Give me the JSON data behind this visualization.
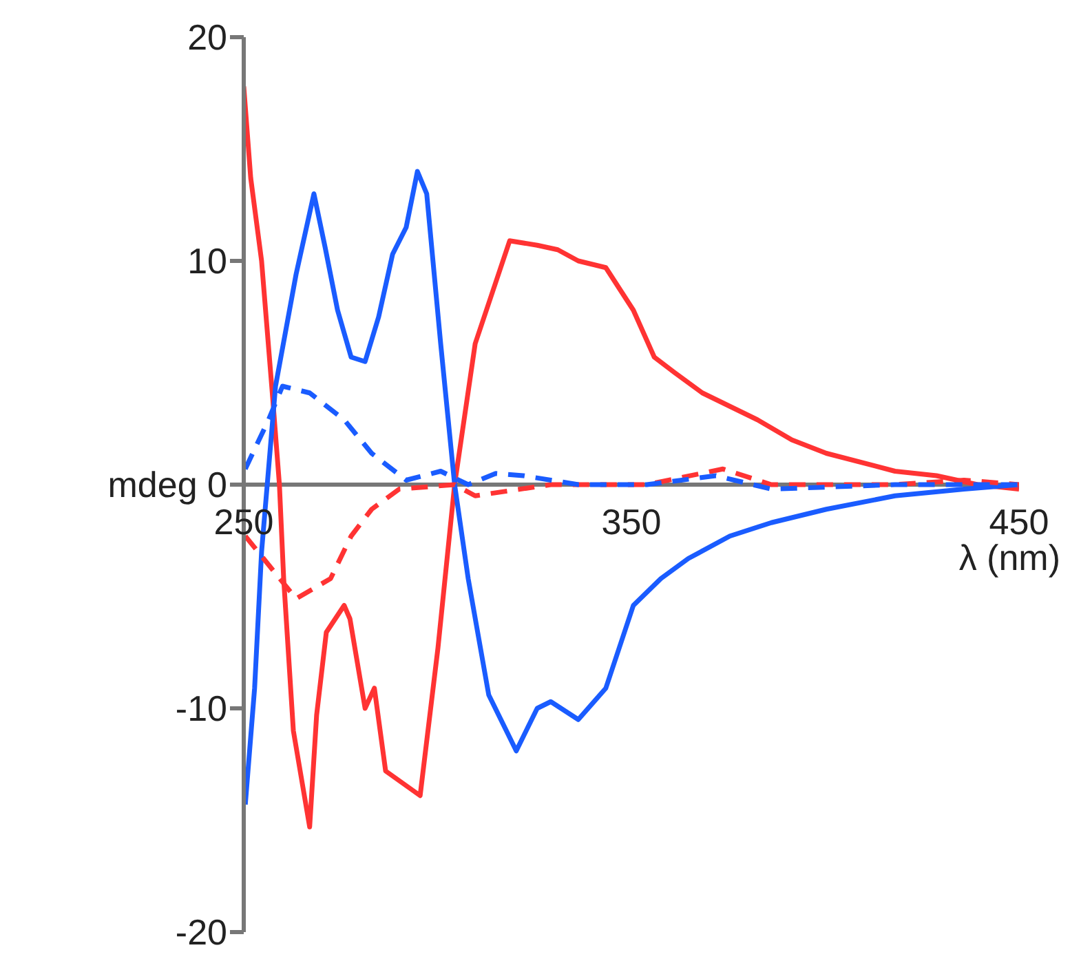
{
  "chart_data": {
    "type": "line",
    "xlabel": "λ (nm)",
    "xlim": [
      250,
      450
    ],
    "xticks": [
      250,
      350,
      450
    ],
    "ylim": [
      -20,
      20
    ],
    "yticks": [
      -20,
      -10,
      {
        "value": 0,
        "label": "mdeg 0"
      },
      10,
      20
    ],
    "marker": "none",
    "series": [
      {
        "color": "#ff3333",
        "line_style": "solid",
        "x": [
          250,
          251.8,
          254.6,
          257.5,
          259.2,
          260.3,
          262.8,
          267,
          268.8,
          271.3,
          275.9,
          277.4,
          281.3,
          283.7,
          286.6,
          295.5,
          300.1,
          304.4,
          309.7,
          318.6,
          325.7,
          331,
          336.3,
          343.4,
          350.5,
          355.9,
          361.2,
          368.3,
          375.4,
          382.5,
          391.4,
          400.3,
          418,
          428.7,
          439.3,
          450
        ],
        "values": [
          17.8,
          13.7,
          10,
          3.8,
          0,
          -4.2,
          -11,
          -15.3,
          -10.3,
          -6.6,
          -5.4,
          -6,
          -10,
          -9.1,
          -12.8,
          -13.9,
          -7.3,
          0,
          6.3,
          10.9,
          10.7,
          10.5,
          10,
          9.7,
          7.8,
          5.7,
          5,
          4.1,
          3.5,
          2.9,
          2,
          1.4,
          0.6,
          0.4,
          0,
          -0.2
        ]
      },
      {
        "color": "#1a5cff",
        "line_style": "solid",
        "x": [
          250.4,
          252.8,
          254.6,
          258.2,
          263.5,
          268.1,
          271,
          274.2,
          277.7,
          281.3,
          284.8,
          288.4,
          291.9,
          294.8,
          297.2,
          300.8,
          304.4,
          307.9,
          313.2,
          320.3,
          325.7,
          329.2,
          336.3,
          343.4,
          350.5,
          357.6,
          364.7,
          375.4,
          386.1,
          400.3,
          418,
          435.8,
          450
        ],
        "values": [
          -14.3,
          -9.1,
          -3,
          4.4,
          9.4,
          13,
          10.6,
          7.8,
          5.7,
          5.5,
          7.5,
          10.3,
          11.5,
          14,
          13,
          6.3,
          0,
          -4.2,
          -9.4,
          -11.9,
          -10,
          -9.7,
          -10.5,
          -9.1,
          -5.4,
          -4.2,
          -3.3,
          -2.3,
          -1.7,
          -1.1,
          -0.5,
          -0.2,
          0
        ]
      },
      {
        "color": "#ff3333",
        "line_style": "dashed",
        "x": [
          250.4,
          263.5,
          272.4,
          277.7,
          283,
          290.1,
          304.4,
          309.7,
          329.2,
          354,
          373.6,
          386.1,
          418,
          435.8,
          450
        ],
        "values": [
          -2.3,
          -5.1,
          -4.2,
          -2.3,
          -1.1,
          -0.2,
          0,
          -0.5,
          0,
          0,
          0.7,
          0,
          0,
          0.2,
          0
        ]
      },
      {
        "color": "#1a5cff",
        "line_style": "dashed",
        "x": [
          250.4,
          256.4,
          260,
          267,
          275.9,
          283,
          291.9,
          300.8,
          307.9,
          315,
          322.1,
          336.3,
          354,
          371.8,
          386.1,
          418,
          450
        ],
        "values": [
          0.7,
          2.9,
          4.4,
          4.1,
          2.9,
          1.4,
          0.2,
          0.6,
          0,
          0.5,
          0.4,
          0,
          0,
          0.4,
          -0.2,
          0,
          0
        ]
      }
    ]
  }
}
